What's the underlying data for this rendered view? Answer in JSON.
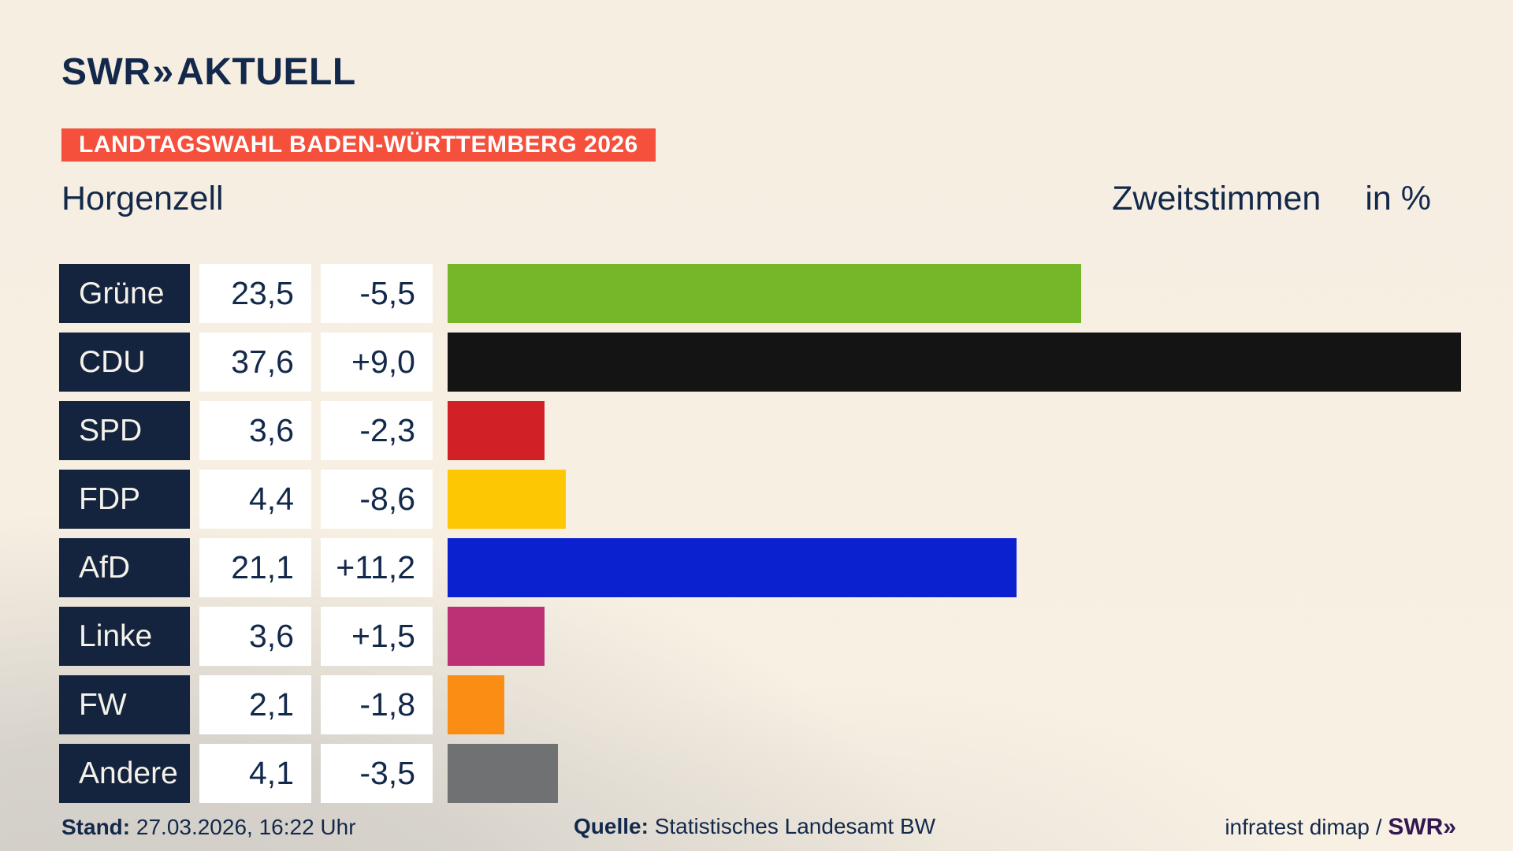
{
  "brand": {
    "swr": "SWR",
    "chevrons": "»",
    "aktuell": "AKTUELL"
  },
  "banner": {
    "text": "LANDTAGSWAHL BADEN-WÜRTTEMBERG 2026",
    "bg": "#F4503C"
  },
  "title": {
    "municipality": "Horgenzell",
    "measure": "Zweitstimmen",
    "unit": "in %"
  },
  "footer": {
    "stand_label": "Stand:",
    "stand_value": " 27.03.2026, 16:22 Uhr",
    "quelle_label": "Quelle:",
    "quelle_value": " Statistisches Landesamt BW",
    "credit_text": "infratest dimap / ",
    "credit_logo": "SWR»"
  },
  "chart_data": {
    "type": "bar",
    "orientation": "horizontal",
    "title": "Landtagswahl Baden-Württemberg 2026 — Horgenzell — Zweitstimmen in %",
    "xlabel": "Zweitstimmen in %",
    "xlim": [
      0,
      39.7
    ],
    "grid": false,
    "legend": "none",
    "rows": [
      {
        "party": "Grüne",
        "value": 23.5,
        "value_label": "23,5",
        "diff": -5.5,
        "diff_label": "-5,5",
        "color": "#76B72A"
      },
      {
        "party": "CDU",
        "value": 37.6,
        "value_label": "37,6",
        "diff": 9.0,
        "diff_label": "+9,0",
        "color": "#141414"
      },
      {
        "party": "SPD",
        "value": 3.6,
        "value_label": "3,6",
        "diff": -2.3,
        "diff_label": "-2,3",
        "color": "#D22027"
      },
      {
        "party": "FDP",
        "value": 4.4,
        "value_label": "4,4",
        "diff": -8.6,
        "diff_label": "-8,6",
        "color": "#FDC703"
      },
      {
        "party": "AfD",
        "value": 21.1,
        "value_label": "21,1",
        "diff": 11.2,
        "diff_label": "+11,2",
        "color": "#0B20CE"
      },
      {
        "party": "Linke",
        "value": 3.6,
        "value_label": "3,6",
        "diff": 1.5,
        "diff_label": "+1,5",
        "color": "#BC3075"
      },
      {
        "party": "FW",
        "value": 2.1,
        "value_label": "2,1",
        "diff": -1.8,
        "diff_label": "-1,8",
        "color": "#FB8D14"
      },
      {
        "party": "Andere",
        "value": 4.1,
        "value_label": "4,1",
        "diff": -3.5,
        "diff_label": "-3,5",
        "color": "#707172"
      }
    ]
  }
}
